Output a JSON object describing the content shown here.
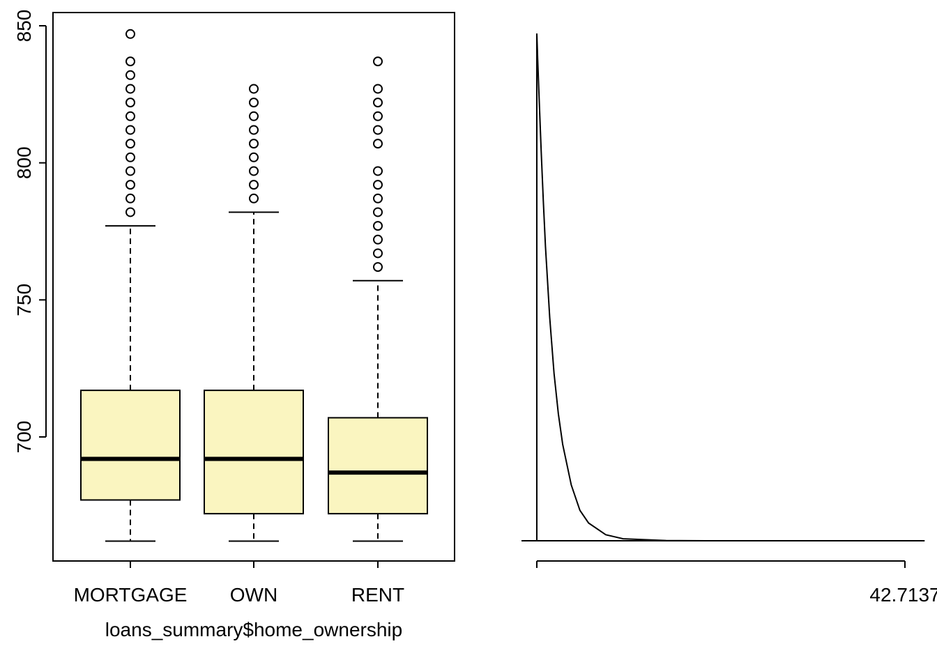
{
  "chart_data": [
    {
      "type": "box",
      "categories": [
        "MORTGAGE",
        "OWN",
        "RENT"
      ],
      "xlabel": "loans_summary$home_ownership",
      "ylabel": "",
      "yticks": [
        700,
        750,
        800,
        850
      ],
      "ylim": [
        663,
        850
      ],
      "box_fill": "#FAF5C0",
      "boxes": [
        {
          "name": "MORTGAGE",
          "min": 662,
          "q1": 677,
          "median": 692,
          "q3": 717,
          "max": 777,
          "outliers": [
            782,
            787,
            792,
            797,
            802,
            807,
            812,
            817,
            822,
            827,
            832,
            837,
            847
          ]
        },
        {
          "name": "OWN",
          "min": 662,
          "q1": 672,
          "median": 692,
          "q3": 717,
          "max": 782,
          "outliers": [
            787,
            792,
            797,
            802,
            807,
            812,
            817,
            822,
            827
          ]
        },
        {
          "name": "RENT",
          "min": 662,
          "q1": 672,
          "median": 687,
          "q3": 707,
          "max": 757,
          "outliers": [
            762,
            767,
            772,
            777,
            782,
            787,
            792,
            797,
            807,
            812,
            817,
            822,
            827,
            837
          ]
        }
      ]
    },
    {
      "type": "line",
      "title": "",
      "xlabel": "",
      "ylabel": "",
      "xtick_labels": [
        "",
        "42.7137"
      ],
      "series": [
        {
          "x": [
            0,
            0.1,
            0.25,
            0.5,
            0.75,
            1.0,
            1.5,
            2.0,
            2.5,
            3.0,
            4.0,
            5.0,
            6.0,
            8.0,
            10.0,
            15.0,
            20.0,
            30.0,
            45.0
          ],
          "y": [
            1.0,
            0.95,
            0.88,
            0.77,
            0.67,
            0.58,
            0.44,
            0.33,
            0.25,
            0.19,
            0.11,
            0.06,
            0.035,
            0.012,
            0.004,
            0.0005,
            0,
            0,
            0
          ]
        }
      ]
    }
  ]
}
